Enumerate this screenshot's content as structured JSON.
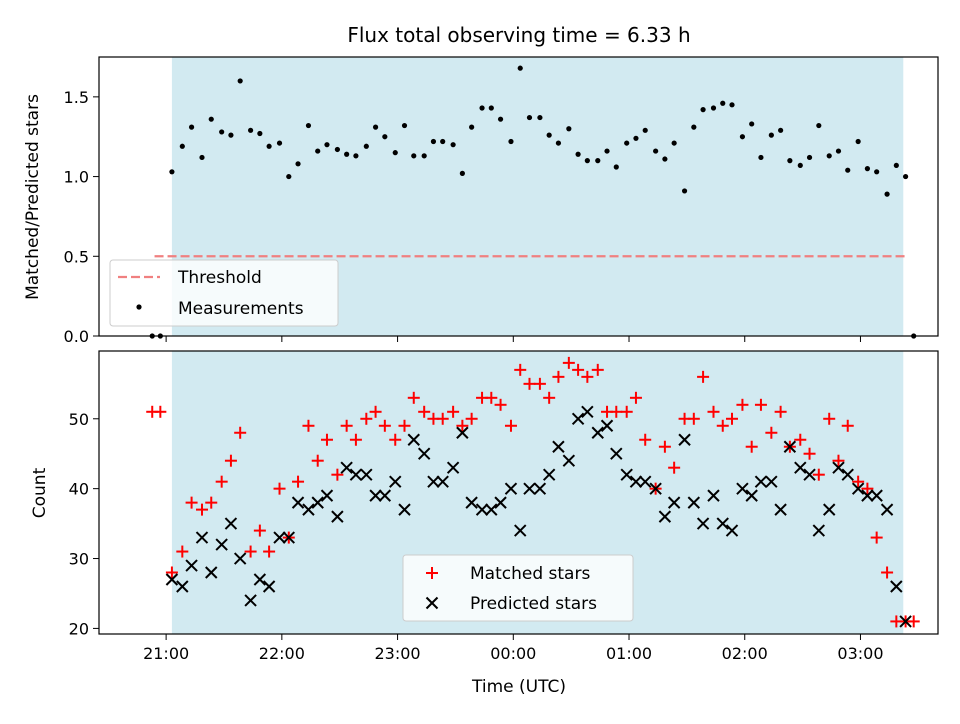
{
  "figure": {
    "title": "Flux total observing time = 6.33 h",
    "xlabel": "Time (UTC)",
    "x_ticks": [
      "21:00",
      "22:00",
      "23:00",
      "00:00",
      "01:00",
      "02:00",
      "03:00"
    ],
    "x_tick_hours": [
      21,
      22,
      23,
      24,
      25,
      26,
      27
    ],
    "shaded_range_hours": [
      21.05,
      27.37
    ],
    "colors": {
      "shade": "#add8e6",
      "threshold": "#f08080",
      "matched": "#ff0000",
      "predicted": "#000000",
      "measurement": "#000000"
    }
  },
  "chart_data": [
    {
      "type": "scatter",
      "ylabel": "Matched/Predicted stars",
      "xlim_hours": [
        20.42,
        27.67
      ],
      "ylim": [
        0,
        1.75
      ],
      "y_ticks": [
        "0.0",
        "0.5",
        "1.0",
        "1.5"
      ],
      "y_tick_values": [
        0,
        0.5,
        1.0,
        1.5
      ],
      "threshold": {
        "label": "Threshold",
        "value": 0.5,
        "x_range_hours": [
          20.9,
          27.4
        ]
      },
      "legend": {
        "placement": "lower-left",
        "entries": [
          "Threshold",
          "Measurements"
        ]
      },
      "series": [
        {
          "name": "Measurements",
          "x_hours": [
            20.88,
            20.95,
            21.05,
            21.14,
            21.22,
            21.31,
            21.39,
            21.48,
            21.56,
            21.64,
            21.73,
            21.81,
            21.89,
            21.98,
            22.06,
            22.14,
            22.23,
            22.31,
            22.39,
            22.48,
            22.56,
            22.64,
            22.73,
            22.81,
            22.89,
            22.98,
            23.06,
            23.14,
            23.23,
            23.31,
            23.39,
            23.48,
            23.56,
            23.64,
            23.73,
            23.81,
            23.89,
            23.98,
            24.06,
            24.14,
            24.23,
            24.31,
            24.39,
            24.48,
            24.56,
            24.64,
            24.73,
            24.81,
            24.89,
            24.98,
            25.06,
            25.14,
            25.23,
            25.31,
            25.39,
            25.48,
            25.56,
            25.64,
            25.73,
            25.81,
            25.89,
            25.98,
            26.06,
            26.14,
            26.23,
            26.31,
            26.39,
            26.48,
            26.56,
            26.64,
            26.73,
            26.81,
            26.89,
            26.98,
            27.06,
            27.14,
            27.23,
            27.31,
            27.39,
            27.46
          ],
          "y": [
            0,
            0,
            1.03,
            1.19,
            1.31,
            1.12,
            1.36,
            1.28,
            1.26,
            1.6,
            1.29,
            1.27,
            1.19,
            1.21,
            1.0,
            1.08,
            1.32,
            1.16,
            1.2,
            1.17,
            1.14,
            1.13,
            1.19,
            1.31,
            1.25,
            1.15,
            1.32,
            1.13,
            1.13,
            1.22,
            1.22,
            1.2,
            1.02,
            1.31,
            1.43,
            1.43,
            1.36,
            1.22,
            1.68,
            1.37,
            1.37,
            1.26,
            1.21,
            1.3,
            1.14,
            1.1,
            1.1,
            1.16,
            1.06,
            1.21,
            1.24,
            1.29,
            1.16,
            1.11,
            1.21,
            0.91,
            1.31,
            1.42,
            1.43,
            1.46,
            1.45,
            1.25,
            1.33,
            1.12,
            1.26,
            1.29,
            1.1,
            1.07,
            1.12,
            1.32,
            1.13,
            1.16,
            1.04,
            1.22,
            1.05,
            1.03,
            0.89,
            1.07,
            1.0,
            0
          ]
        }
      ]
    },
    {
      "type": "scatter",
      "ylabel": "Count",
      "xlim_hours": [
        20.42,
        27.67
      ],
      "ylim": [
        19.2,
        59.7
      ],
      "y_ticks": [
        "20",
        "30",
        "40",
        "50"
      ],
      "y_tick_values": [
        20,
        30,
        40,
        50
      ],
      "legend": {
        "placement": "lower-center",
        "entries": [
          "Matched stars",
          "Predicted stars"
        ]
      },
      "series": [
        {
          "name": "Matched stars",
          "marker": "plus",
          "x_hours": [
            20.88,
            20.95,
            21.05,
            21.14,
            21.22,
            21.31,
            21.39,
            21.48,
            21.56,
            21.64,
            21.73,
            21.81,
            21.89,
            21.98,
            22.06,
            22.14,
            22.23,
            22.31,
            22.39,
            22.48,
            22.56,
            22.64,
            22.73,
            22.81,
            22.89,
            22.98,
            23.06,
            23.14,
            23.23,
            23.31,
            23.39,
            23.48,
            23.56,
            23.64,
            23.73,
            23.81,
            23.89,
            23.98,
            24.06,
            24.14,
            24.23,
            24.31,
            24.39,
            24.48,
            24.56,
            24.64,
            24.73,
            24.81,
            24.89,
            24.98,
            25.06,
            25.14,
            25.23,
            25.31,
            25.39,
            25.48,
            25.56,
            25.64,
            25.73,
            25.81,
            25.89,
            25.98,
            26.06,
            26.14,
            26.23,
            26.31,
            26.39,
            26.48,
            26.56,
            26.64,
            26.73,
            26.81,
            26.89,
            26.98,
            27.06,
            27.14,
            27.23,
            27.31,
            27.39,
            27.46
          ],
          "y": [
            51,
            51,
            28,
            31,
            38,
            37,
            38,
            41,
            44,
            48,
            31,
            34,
            31,
            40,
            33,
            41,
            49,
            44,
            47,
            42,
            49,
            47,
            50,
            51,
            49,
            47,
            49,
            53,
            51,
            50,
            50,
            51,
            49,
            50,
            53,
            53,
            52,
            49,
            57,
            55,
            55,
            53,
            56,
            58,
            57,
            56,
            57,
            51,
            51,
            51,
            53,
            47,
            40,
            46,
            43,
            50,
            50,
            56,
            51,
            49,
            50,
            52,
            46,
            52,
            48,
            51,
            46,
            47,
            45,
            42,
            50,
            44,
            49,
            41,
            40,
            33,
            28,
            21,
            21,
            21
          ],
          "_fix": "last three merged"
        },
        {
          "name": "Predicted stars",
          "marker": "x",
          "x_hours": [
            21.05,
            21.14,
            21.22,
            21.31,
            21.39,
            21.48,
            21.56,
            21.64,
            21.73,
            21.81,
            21.89,
            21.98,
            22.06,
            22.14,
            22.23,
            22.31,
            22.39,
            22.48,
            22.56,
            22.64,
            22.73,
            22.81,
            22.89,
            22.98,
            23.06,
            23.14,
            23.23,
            23.31,
            23.39,
            23.48,
            23.56,
            23.64,
            23.73,
            23.81,
            23.89,
            23.98,
            24.06,
            24.14,
            24.23,
            24.31,
            24.39,
            24.48,
            24.56,
            24.64,
            24.73,
            24.81,
            24.89,
            24.98,
            25.06,
            25.14,
            25.23,
            25.31,
            25.39,
            25.48,
            25.56,
            25.64,
            25.73,
            25.81,
            25.89,
            25.98,
            26.06,
            26.14,
            26.23,
            26.31,
            26.39,
            26.48,
            26.56,
            26.64,
            26.73,
            26.81,
            26.89,
            26.98,
            27.06,
            27.14,
            27.23,
            27.31,
            27.39
          ],
          "y": [
            27,
            26,
            29,
            33,
            28,
            32,
            35,
            30,
            24,
            27,
            26,
            33,
            33,
            38,
            37,
            38,
            39,
            36,
            43,
            42,
            42,
            39,
            39,
            41,
            37,
            47,
            45,
            41,
            41,
            43,
            48,
            38,
            37,
            37,
            38,
            40,
            34,
            40,
            40,
            42,
            46,
            44,
            50,
            51,
            48,
            49,
            45,
            42,
            41,
            41,
            40,
            36,
            38,
            47,
            38,
            35,
            39,
            35,
            34,
            40,
            39,
            41,
            41,
            37,
            46,
            43,
            42,
            34,
            37,
            43,
            42,
            40,
            39,
            39,
            37,
            26,
            21
          ]
        }
      ]
    }
  ]
}
